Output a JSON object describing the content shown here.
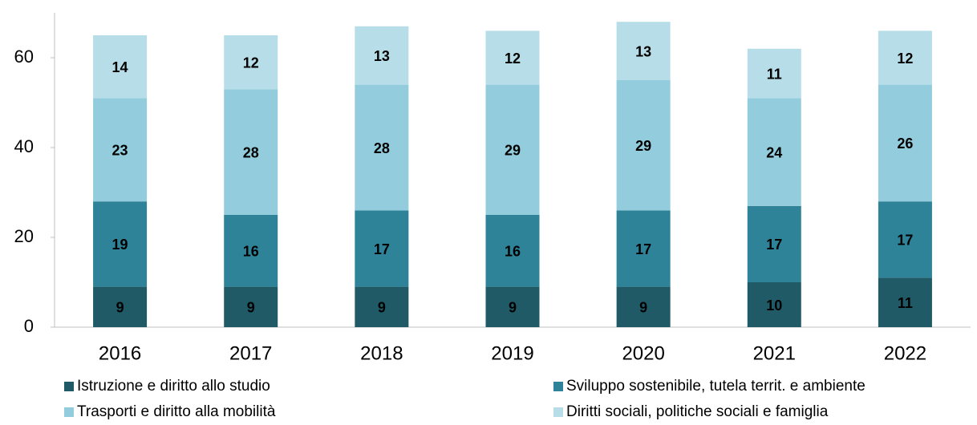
{
  "chart_data": {
    "type": "stacked_bar",
    "categories": [
      "2016",
      "2017",
      "2018",
      "2019",
      "2020",
      "2021",
      "2022"
    ],
    "series": [
      {
        "name": "Istruzione e diritto allo studio",
        "color": "#215a67",
        "values": [
          9,
          9,
          9,
          9,
          9,
          10,
          11
        ]
      },
      {
        "name": "Sviluppo sostenibile, tutela territ. e ambiente",
        "color": "#2e8399",
        "values": [
          19,
          16,
          17,
          16,
          17,
          17,
          17
        ]
      },
      {
        "name": "Trasporti e diritto alla mobilità",
        "color": "#93cddd",
        "values": [
          23,
          28,
          28,
          29,
          29,
          24,
          26
        ]
      },
      {
        "name": "Diritti sociali, politiche sociali e famiglia",
        "color": "#b7dee8",
        "values": [
          14,
          12,
          13,
          12,
          13,
          11,
          12
        ]
      }
    ],
    "ylim": [
      0,
      70
    ],
    "yticks": [
      0,
      20,
      40,
      60
    ],
    "grid": false
  }
}
